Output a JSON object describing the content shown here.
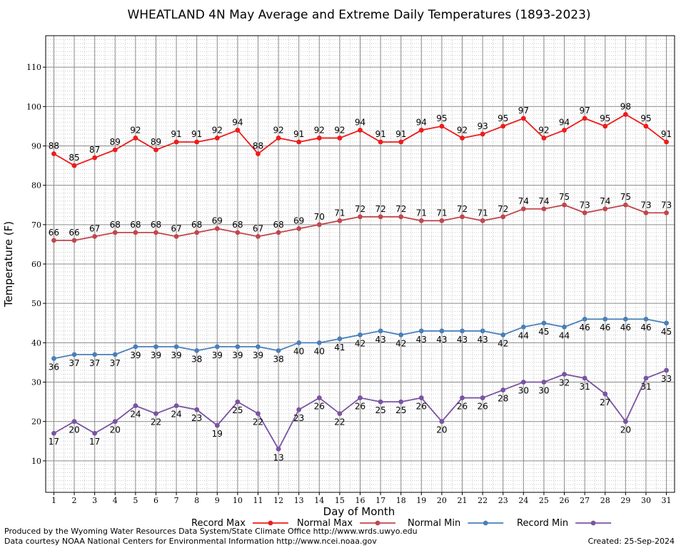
{
  "chart_data": {
    "type": "line",
    "title": "WHEATLAND 4N May Average and Extreme Daily Temperatures (1893-2023)",
    "xlabel": "Day of Month",
    "ylabel": "Temperature (F)",
    "xlim": [
      0.6,
      31.4
    ],
    "ylim": [
      2,
      118
    ],
    "yticks": [
      10,
      20,
      30,
      40,
      50,
      60,
      70,
      80,
      90,
      100,
      110
    ],
    "grid": true,
    "x": [
      1,
      2,
      3,
      4,
      5,
      6,
      7,
      8,
      9,
      10,
      11,
      12,
      13,
      14,
      15,
      16,
      17,
      18,
      19,
      20,
      21,
      22,
      23,
      24,
      25,
      26,
      27,
      28,
      29,
      30,
      31
    ],
    "series": [
      {
        "name": "Record Max",
        "color": "#ee1c1c",
        "label_pos": "above",
        "values": [
          88,
          85,
          87,
          89,
          92,
          89,
          91,
          91,
          92,
          94,
          88,
          92,
          91,
          92,
          92,
          94,
          91,
          91,
          94,
          95,
          92,
          93,
          95,
          97,
          92,
          94,
          97,
          95,
          98,
          95,
          91
        ]
      },
      {
        "name": "Normal Max",
        "color": "#c0474d",
        "label_pos": "above",
        "values": [
          66,
          66,
          67,
          68,
          68,
          68,
          67,
          68,
          69,
          68,
          67,
          68,
          69,
          70,
          71,
          72,
          72,
          72,
          71,
          71,
          72,
          71,
          72,
          74,
          74,
          75,
          73,
          74,
          75,
          73,
          73
        ]
      },
      {
        "name": "Normal Min",
        "color": "#4a7fb8",
        "label_pos": "below",
        "values": [
          36,
          37,
          37,
          37,
          39,
          39,
          39,
          38,
          39,
          39,
          39,
          38,
          40,
          40,
          41,
          42,
          43,
          42,
          43,
          43,
          43,
          43,
          42,
          44,
          45,
          44,
          46,
          46,
          46,
          46,
          45
        ]
      },
      {
        "name": "Record Min",
        "color": "#7a54a0",
        "label_pos": "below",
        "values": [
          17,
          20,
          17,
          20,
          24,
          22,
          24,
          23,
          19,
          25,
          22,
          13,
          23,
          26,
          22,
          26,
          25,
          25,
          26,
          20,
          26,
          26,
          28,
          30,
          30,
          32,
          31,
          27,
          20,
          31,
          33
        ]
      }
    ],
    "legend_position": "bottom"
  },
  "footer": {
    "credit_line1": "Produced by the Wyoming Water Resources Data System/State Climate Office http://www.wrds.uwyo.edu",
    "credit_line2": "Data courtesy NOAA National Centers for Environmental Information http://www.ncei.noaa.gov",
    "created": "Created:  25-Sep-2024"
  }
}
